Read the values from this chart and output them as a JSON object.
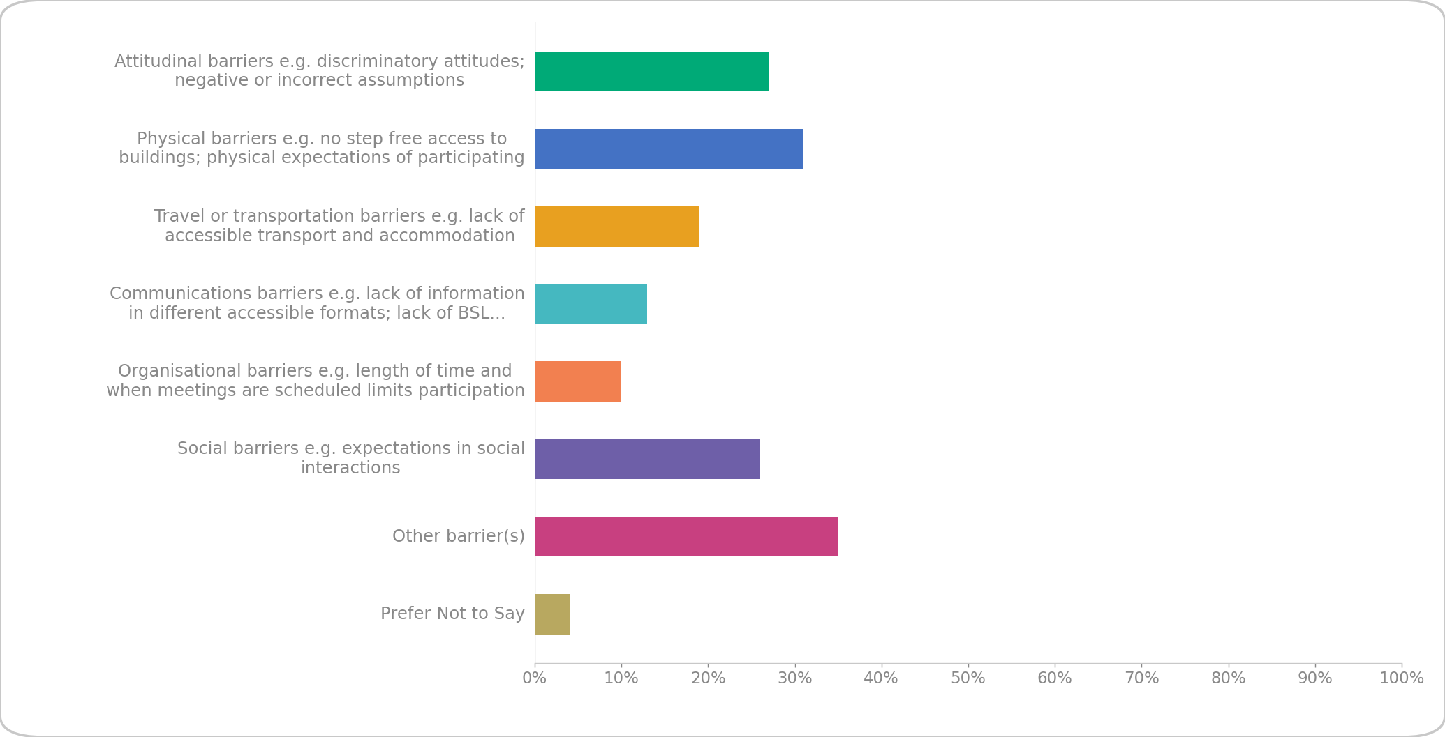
{
  "categories": [
    "Attitudinal barriers e.g. discriminatory attitudes;\nnegative or incorrect assumptions",
    "Physical barriers e.g. no step free access to\nbuildings; physical expectations of participating",
    "Travel or transportation barriers e.g. lack of\naccessible transport and accommodation",
    "Communications barriers e.g. lack of information\nin different accessible formats; lack of BSL...",
    "Organisational barriers e.g. length of time and\nwhen meetings are scheduled limits participation",
    "Social barriers e.g. expectations in social\ninteractions",
    "Other barrier(s)",
    "Prefer Not to Say"
  ],
  "values": [
    27,
    31,
    19,
    13,
    10,
    26,
    35,
    4
  ],
  "colors": [
    "#00AA77",
    "#4472C4",
    "#E8A020",
    "#45B8C0",
    "#F28050",
    "#6E5FA8",
    "#C84080",
    "#B8A860"
  ],
  "xlim": [
    0,
    100
  ],
  "xtick_values": [
    0,
    10,
    20,
    30,
    40,
    50,
    60,
    70,
    80,
    90,
    100
  ],
  "xtick_labels": [
    "0%",
    "10%",
    "20%",
    "30%",
    "40%",
    "50%",
    "60%",
    "70%",
    "80%",
    "90%",
    "100%"
  ],
  "text_color": "#888888",
  "background_color": "#FFFFFF",
  "spine_color": "#C8C8C8",
  "bar_height": 0.52,
  "label_fontsize": 17.5,
  "tick_fontsize": 16.5
}
